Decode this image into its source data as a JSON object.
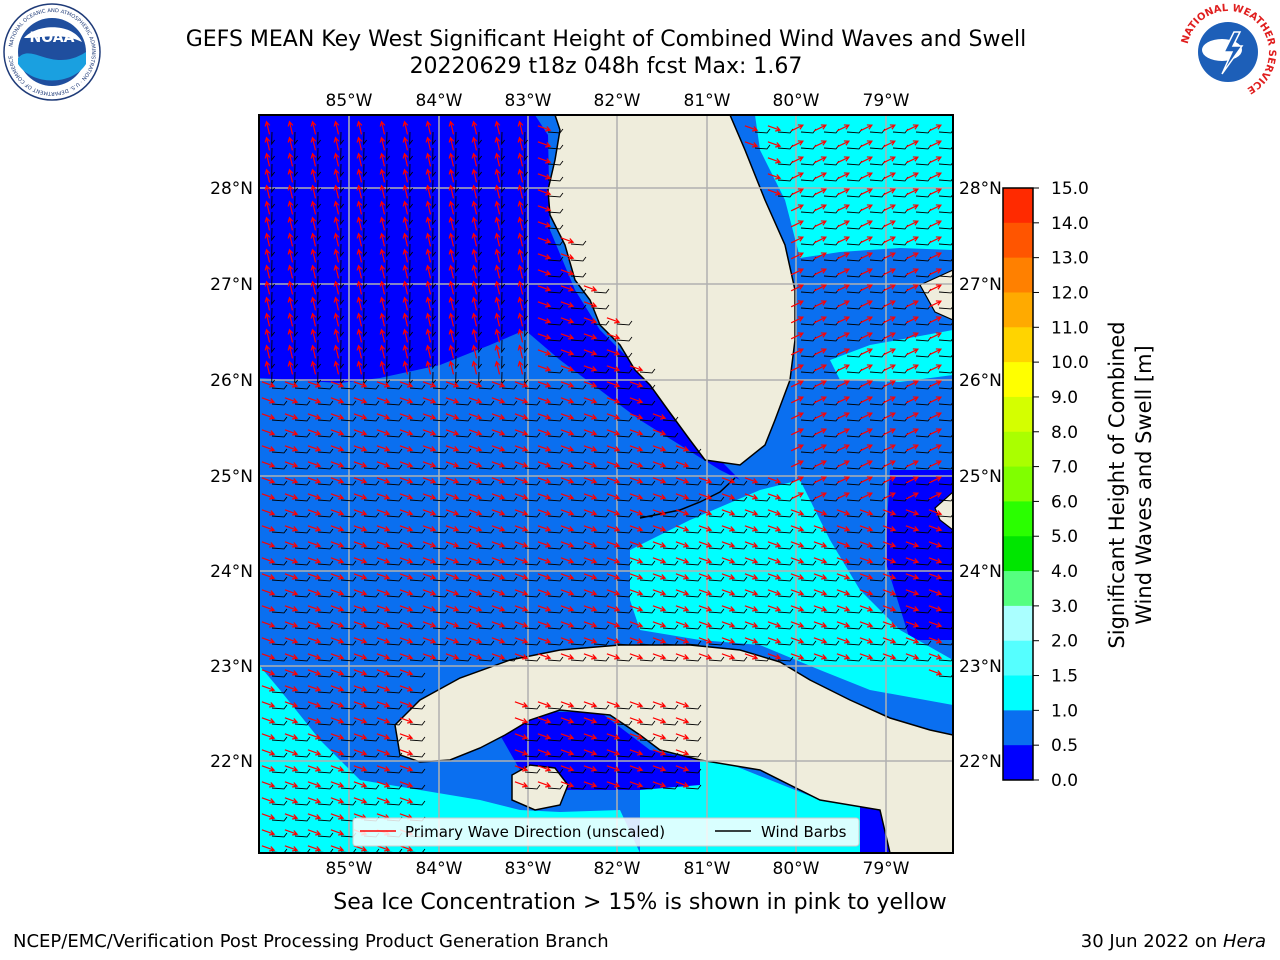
{
  "title": {
    "line1": "GEFS MEAN Key West Significant Height of Combined Wind Waves and Swell",
    "line2": "20220629 t18z 048h fcst   Max: 1.67"
  },
  "map": {
    "lon_labels": [
      "85°W",
      "84°W",
      "83°W",
      "82°W",
      "81°W",
      "80°W",
      "79°W"
    ],
    "lat_labels": [
      "28°N",
      "27°N",
      "26°N",
      "25°N",
      "24°N",
      "23°N",
      "22°N"
    ],
    "legend": {
      "wave_direction": "Primary Wave Direction (unscaled)",
      "wind_barbs": "Wind Barbs"
    },
    "colors": {
      "land": "#efeddc",
      "sea_0_0_5": "#0000ff",
      "sea_0_5_1": "#0a6ff0",
      "sea_1_1_5": "#00ffff",
      "wave_arrow": "#ff0000",
      "wind_barb": "#000000"
    }
  },
  "colorbar": {
    "label_line1": "Significant Height of Combined",
    "label_line2": "Wind Waves and Swell [m]",
    "ticks": [
      "15.0",
      "14.0",
      "13.0",
      "12.0",
      "11.0",
      "10.0",
      "9.0",
      "8.0",
      "7.0",
      "6.0",
      "5.0",
      "4.0",
      "3.0",
      "2.0",
      "1.5",
      "1.0",
      "0.5",
      "0.0"
    ],
    "colors": [
      "#ff0000",
      "#ff2a00",
      "#ff5500",
      "#ff8000",
      "#ffaa00",
      "#ffd400",
      "#ffff00",
      "#d4ff00",
      "#aaff00",
      "#80ff00",
      "#2aff00",
      "#00e600",
      "#55ff80",
      "#aaffff",
      "#55ffff",
      "#00ffff",
      "#0a6ff0",
      "#0000ff"
    ]
  },
  "logos": {
    "noaa_text": "NOAA",
    "noaa_ring": "NATIONAL OCEANIC AND ATMOSPHERIC ADMINISTRATION · U.S. DEPARTMENT OF COMMERCE",
    "nws_ring": "NATIONAL WEATHER SERVICE"
  },
  "note": "Sea Ice Concentration > 15% is shown in pink to yellow",
  "footer": {
    "left": "NCEP/EMC/Verification Post Processing Product Generation Branch",
    "date": "30 Jun 2022 on ",
    "host": "Hera"
  }
}
